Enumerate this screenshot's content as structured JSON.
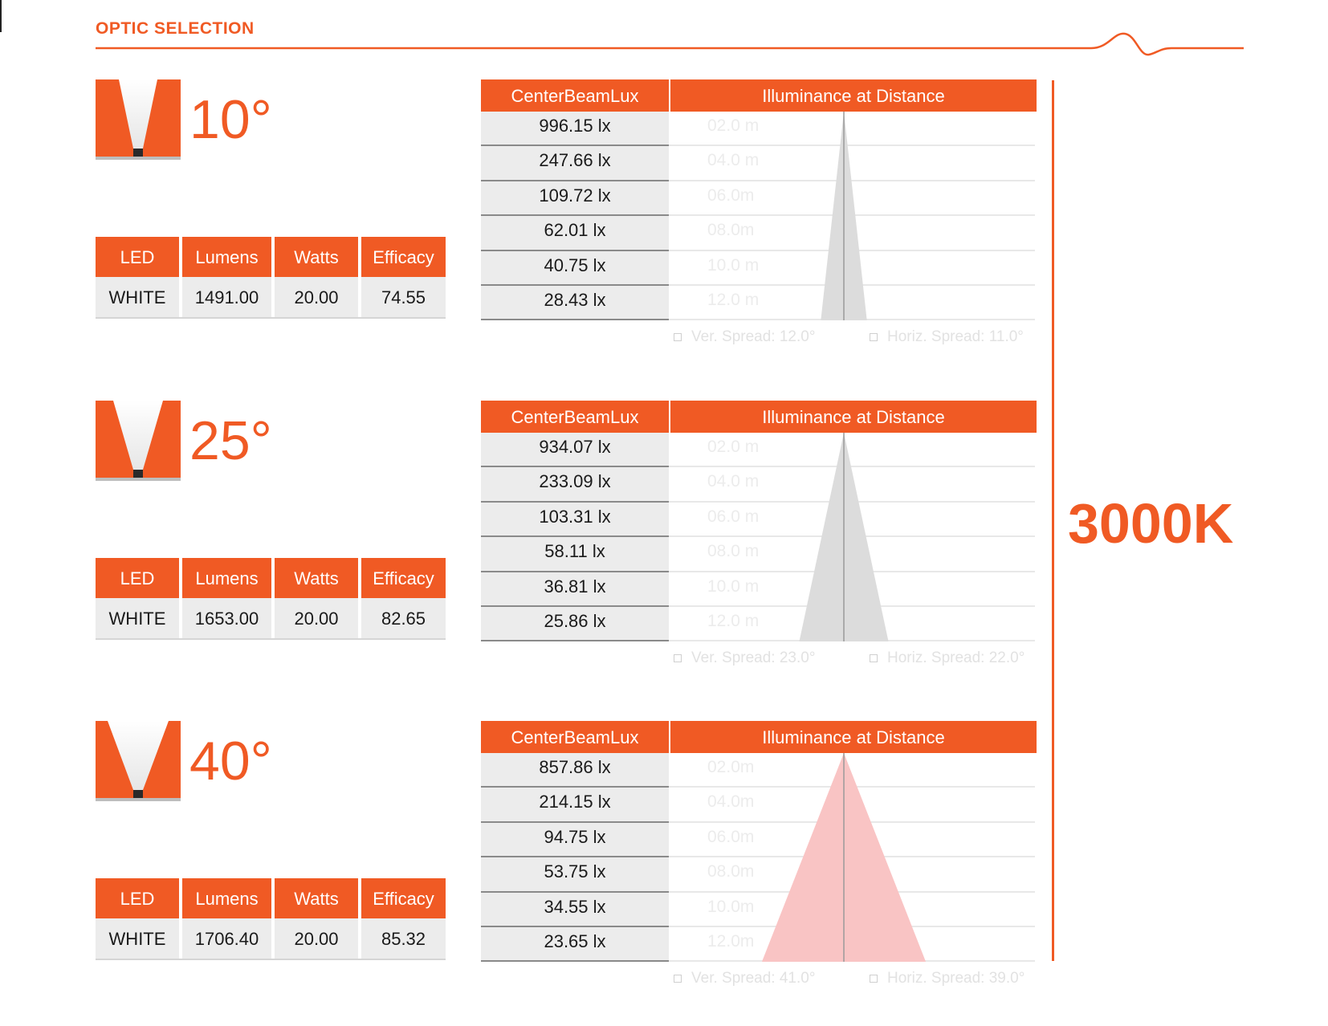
{
  "header": {
    "title": "OPTIC SELECTION"
  },
  "color_temperature": "3000K",
  "table_headers": {
    "led": "LED",
    "lumens": "Lumens",
    "watts": "Watts",
    "efficacy": "Efficacy",
    "center_beam_lux": "CenterBeamLux",
    "illuminance": "Illuminance at Distance"
  },
  "colors": {
    "accent": "#f05a24",
    "cell_gray": "#ececec",
    "cone_gray": "#dcdcdc",
    "cone_pink": "#f9c4c4"
  },
  "optics": [
    {
      "angle": "10°",
      "spec": {
        "led": "WHITE",
        "lumens": "1491.00",
        "watts": "20.00",
        "efficacy": "74.55"
      },
      "lux": [
        "996.15 lx",
        "247.66 lx",
        "109.72 lx",
        "62.01 lx",
        "40.75  lx",
        "28.43 lx"
      ],
      "distances": [
        "02.0 m",
        "04.0 m",
        "06.0m",
        "08.0m",
        "10.0 m",
        "12.0 m"
      ],
      "ver_spread": "Ver. Spread: 12.0°",
      "horiz_spread": "Horiz. Spread: 11.0°",
      "cone_spread_deg": 12,
      "cone_color": "gray"
    },
    {
      "angle": "25°",
      "spec": {
        "led": "WHITE",
        "lumens": "1653.00",
        "watts": "20.00",
        "efficacy": "82.65"
      },
      "lux": [
        "934.07 lx",
        "233.09 lx",
        "103.31 lx",
        "58.11 lx",
        "36.81 lx",
        "25.86 lx"
      ],
      "distances": [
        "02.0 m",
        "04.0 m",
        "06.0 m",
        "08.0 m",
        "10.0 m",
        "12.0 m"
      ],
      "ver_spread": "Ver. Spread: 23.0°",
      "horiz_spread": "Horiz. Spread: 22.0°",
      "cone_spread_deg": 23,
      "cone_color": "gray"
    },
    {
      "angle": "40°",
      "spec": {
        "led": "WHITE",
        "lumens": "1706.40",
        "watts": "20.00",
        "efficacy": "85.32"
      },
      "lux": [
        "857.86 lx",
        "214.15 lx",
        "94.75 lx",
        "53.75 lx",
        "34.55 lx",
        "23.65 lx"
      ],
      "distances": [
        "02.0m",
        "04.0m",
        "06.0m",
        "08.0m",
        "10.0m",
        "12.0m"
      ],
      "ver_spread": "Ver. Spread: 41.0°",
      "horiz_spread": "Horiz. Spread: 39.0°",
      "cone_spread_deg": 41,
      "cone_color": "pink"
    }
  ]
}
